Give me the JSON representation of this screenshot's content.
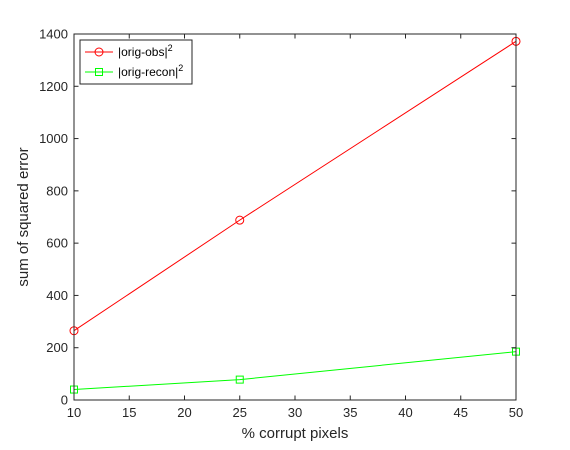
{
  "chart_data": {
    "type": "line",
    "xlabel": "% corrupt pixels",
    "ylabel": "sum of squared error",
    "xlim": [
      10,
      50
    ],
    "ylim": [
      0,
      1400
    ],
    "xticks": [
      10,
      15,
      20,
      25,
      30,
      35,
      40,
      45,
      50
    ],
    "yticks": [
      0,
      200,
      400,
      600,
      800,
      1000,
      1200,
      1400
    ],
    "grid": false,
    "legend_position": "top-left",
    "series": [
      {
        "name": "|orig-obs|",
        "name_superscript": "2",
        "color": "#ff0000",
        "marker": "circle",
        "x": [
          10,
          25,
          50
        ],
        "y": [
          265,
          688,
          1372
        ]
      },
      {
        "name": "|orig-recon|",
        "name_superscript": "2",
        "color": "#00ff00",
        "marker": "square",
        "x": [
          10,
          25,
          50
        ],
        "y": [
          40,
          78,
          185
        ]
      }
    ]
  }
}
